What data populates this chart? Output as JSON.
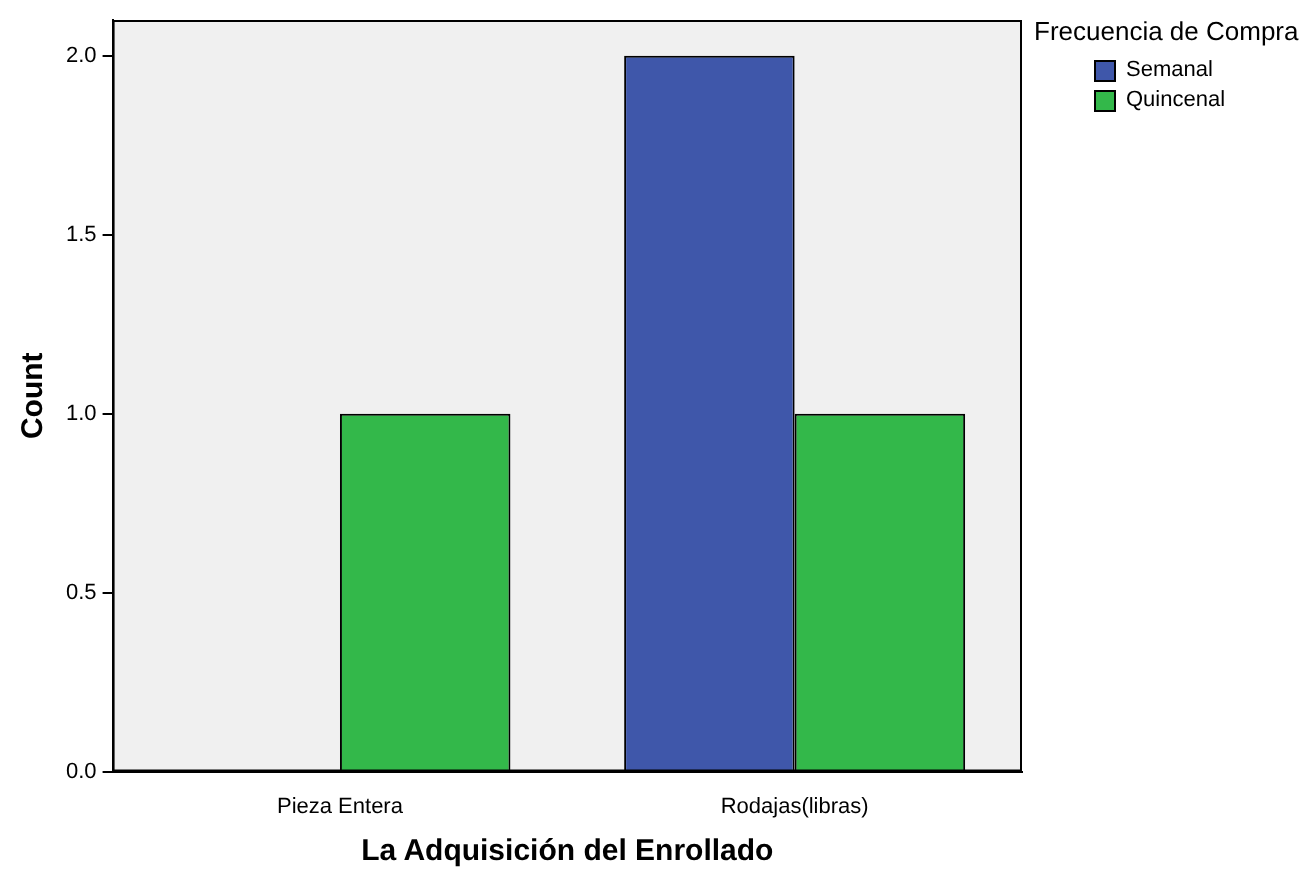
{
  "chart_data": {
    "type": "bar",
    "xlabel": "La Adquisición del Enrollado",
    "ylabel": "Count",
    "legend_title": "Frecuencia de Compra",
    "categories": [
      "Pieza Entera",
      "Rodajas(libras)"
    ],
    "series": [
      {
        "name": "Semanal",
        "color": "#3f57aa",
        "values": [
          0,
          2
        ]
      },
      {
        "name": "Quincenal",
        "color": "#33b84a",
        "values": [
          1,
          1
        ]
      }
    ],
    "ylim": [
      0,
      2.1
    ],
    "yticks": [
      {
        "value": 0,
        "label": "0.0"
      },
      {
        "value": 0.5,
        "label": "0.5"
      },
      {
        "value": 1,
        "label": "1.0"
      },
      {
        "value": 1.5,
        "label": "1.5"
      },
      {
        "value": 2,
        "label": "2.0"
      }
    ],
    "grid": false,
    "legend": "top right"
  }
}
